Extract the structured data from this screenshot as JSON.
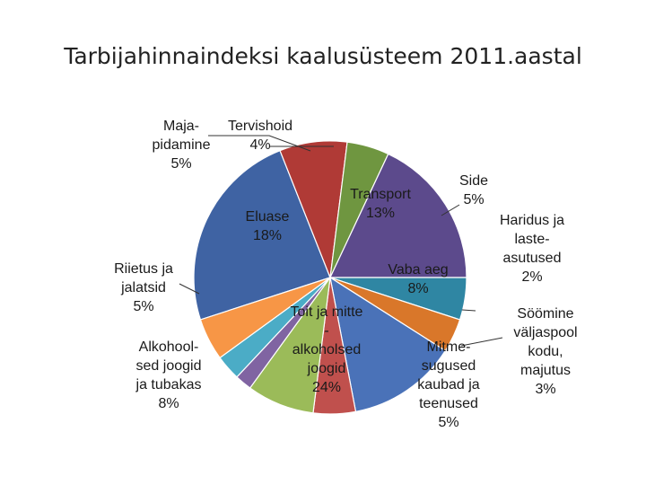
{
  "title": "Tarbijahinnaindeksi kaalusüsteem 2011.aastal",
  "chart_data": {
    "type": "pie",
    "title": "Tarbijahinnaindeksi kaalusüsteem 2011.aastal",
    "slices": [
      {
        "label": "Toit ja mitte - alkoholsed joogid",
        "label_lines": [
          "Toit ja mitte",
          "-",
          "alkoholsed",
          "joogid",
          "24%"
        ],
        "value": 24,
        "color": "#3f63a3"
      },
      {
        "label": "Alkohool-sed joogid ja tubakas",
        "label_lines": [
          "Alkohool-",
          "sed joogid",
          "ja tubakas",
          "8%"
        ],
        "value": 8,
        "color": "#b03a36"
      },
      {
        "label": "Riietus ja jalatsid",
        "label_lines": [
          "Riietus ja",
          "jalatsid",
          "5%"
        ],
        "value": 5,
        "color": "#6f9640"
      },
      {
        "label": "Eluase",
        "label_lines": [
          "Eluase",
          "18%"
        ],
        "value": 18,
        "color": "#5c4a8c"
      },
      {
        "label": "Maja-pidamine",
        "label_lines": [
          "Maja-",
          "pidamine",
          "5%"
        ],
        "value": 5,
        "color": "#2f86a3"
      },
      {
        "label": "Tervishoid",
        "label_lines": [
          "Tervishoid",
          "4%"
        ],
        "value": 4,
        "color": "#d9772a"
      },
      {
        "label": "Transport",
        "label_lines": [
          "Transport",
          "13%"
        ],
        "value": 13,
        "color": "#4a72b8"
      },
      {
        "label": "Side",
        "label_lines": [
          "Side",
          "5%"
        ],
        "value": 5,
        "color": "#c0504d"
      },
      {
        "label": "Vaba aeg",
        "label_lines": [
          "Vaba aeg",
          "8%"
        ],
        "value": 8,
        "color": "#9bbb59"
      },
      {
        "label": "Haridus ja laste-asutused",
        "label_lines": [
          "Haridus ja",
          "laste-",
          "asutused",
          "2%"
        ],
        "value": 2,
        "color": "#8064a2"
      },
      {
        "label": "Söömine väljaspool kodu, majutus",
        "label_lines": [
          "Söömine",
          "väljaspool",
          "kodu,",
          "majutus",
          "3%"
        ],
        "value": 3,
        "color": "#4bacc6"
      },
      {
        "label": "Mitme-sugused kaubad ja teenused",
        "label_lines": [
          "Mitme-",
          "sugused",
          "kaubad ja",
          "teenused",
          "5%"
        ],
        "value": 5,
        "color": "#f79646"
      }
    ]
  }
}
